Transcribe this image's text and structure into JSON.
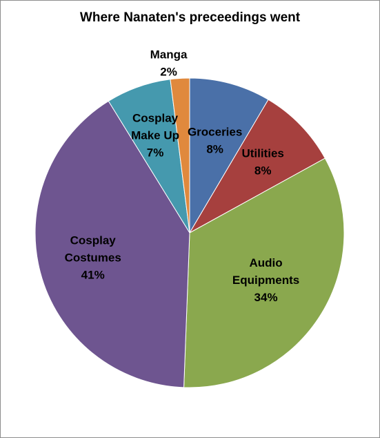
{
  "chart_data": {
    "type": "pie",
    "title": "Where Nanaten's preceedings went",
    "start_angle_deg": 0,
    "direction": "clockwise",
    "legend": "none",
    "slices": [
      {
        "name": "Groceries",
        "label_lines": [
          "Groceries"
        ],
        "percent_label": "8%",
        "value": 8.5,
        "color": "#4a70a8"
      },
      {
        "name": "Utilities",
        "label_lines": [
          "Utilities"
        ],
        "percent_label": "8%",
        "value": 8.5,
        "color": "#a6403e"
      },
      {
        "name": "Audio Equipments",
        "label_lines": [
          "Audio",
          "Equipments"
        ],
        "percent_label": "34%",
        "value": 33.6,
        "color": "#8aa84e"
      },
      {
        "name": "Cosplay Costumes",
        "label_lines": [
          "Cosplay",
          "Costumes"
        ],
        "percent_label": "41%",
        "value": 40.6,
        "color": "#6e5590"
      },
      {
        "name": "Cosplay Make Up",
        "label_lines": [
          "Cosplay",
          "Make Up"
        ],
        "percent_label": "7%",
        "value": 6.8,
        "color": "#4599ae"
      },
      {
        "name": "Manga",
        "label_lines": [
          "Manga"
        ],
        "percent_label": "2%",
        "value": 2.0,
        "color": "#e0893d"
      }
    ]
  }
}
